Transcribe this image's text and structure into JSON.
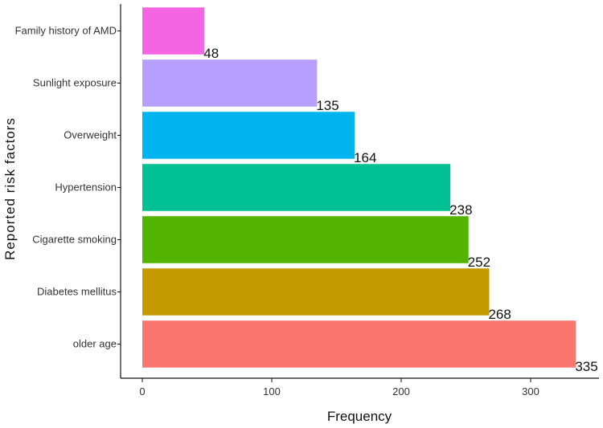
{
  "chart_data": {
    "type": "bar",
    "orientation": "horizontal",
    "title": "",
    "xlabel": "Frequency",
    "ylabel": "Reported risk factors",
    "categories": [
      "Family history of AMD",
      "Sunlight exposure",
      "Overweight",
      "Hypertension",
      "Cigarette smoking",
      "Diabetes mellitus",
      "older age"
    ],
    "values": [
      48,
      135,
      164,
      238,
      252,
      268,
      335
    ],
    "value_labels": [
      "48",
      "135",
      "164",
      "238",
      "252",
      "268",
      "335"
    ],
    "colors": [
      "#F564E3",
      "#B79FFF",
      "#00B4EF",
      "#00C094",
      "#53B400",
      "#C49A00",
      "#F8766D"
    ],
    "xlim": [
      -8,
      345
    ],
    "xticks": [
      0,
      100,
      200,
      300
    ],
    "xtick_labels": [
      "0",
      "100",
      "200",
      "300"
    ],
    "grid": false,
    "legend": "none"
  }
}
